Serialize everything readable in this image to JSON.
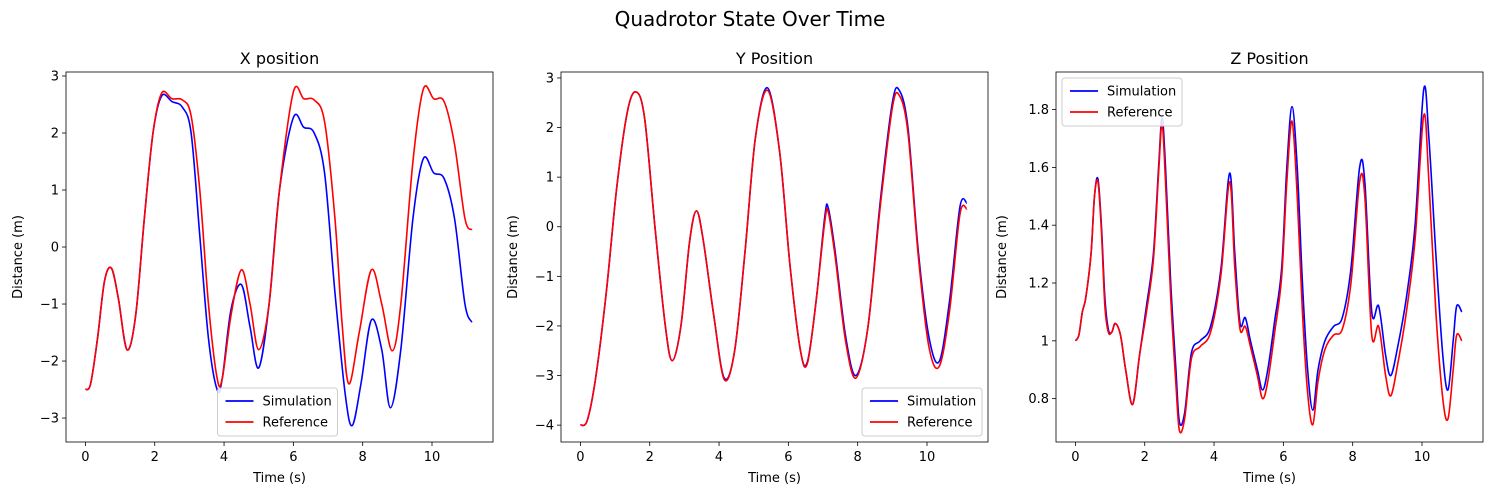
{
  "figure": {
    "suptitle": "Quadrotor State Over Time"
  },
  "chart_data": [
    {
      "type": "line",
      "title": "X position",
      "xlabel": "Time (s)",
      "ylabel": "Distance (m)",
      "xlim": [
        -0.56,
        11.76
      ],
      "ylim": [
        -3.42,
        3.07
      ],
      "xticks": [
        0,
        2,
        4,
        6,
        8,
        10
      ],
      "yticks": [
        -3,
        -2,
        -1,
        0,
        1,
        2,
        3
      ],
      "legend": "lower center",
      "series": [
        {
          "name": "Simulation",
          "color": "#0000ff",
          "x": [
            0,
            0.15,
            0.35,
            0.55,
            0.75,
            0.95,
            1.2,
            1.45,
            1.7,
            1.95,
            2.2,
            2.5,
            2.8,
            3.05,
            3.3,
            3.55,
            3.8,
            3.95,
            4.2,
            4.5,
            4.75,
            5.0,
            5.3,
            5.6,
            6.0,
            6.3,
            6.6,
            6.9,
            7.2,
            7.5,
            7.7,
            7.95,
            8.25,
            8.55,
            8.8,
            9.1,
            9.45,
            9.75,
            10.05,
            10.35,
            10.65,
            10.95,
            11.15
          ],
          "y": [
            -2.5,
            -2.4,
            -1.6,
            -0.6,
            -0.37,
            -0.9,
            -1.8,
            -1.2,
            0.5,
            2.0,
            2.65,
            2.55,
            2.45,
            2.0,
            0.2,
            -1.6,
            -2.5,
            -2.3,
            -1.1,
            -0.66,
            -1.4,
            -2.12,
            -1.0,
            1.0,
            2.27,
            2.1,
            2.0,
            1.3,
            -0.8,
            -2.6,
            -3.13,
            -2.4,
            -1.28,
            -1.8,
            -2.82,
            -1.8,
            0.5,
            1.55,
            1.3,
            1.2,
            0.5,
            -1.0,
            -1.32
          ]
        },
        {
          "name": "Reference",
          "color": "#ff0000",
          "x": [
            0,
            0.15,
            0.35,
            0.55,
            0.75,
            0.95,
            1.2,
            1.45,
            1.7,
            1.95,
            2.2,
            2.5,
            2.8,
            3.05,
            3.3,
            3.55,
            3.8,
            3.95,
            4.2,
            4.5,
            4.75,
            5.0,
            5.3,
            5.6,
            6.0,
            6.3,
            6.6,
            6.9,
            7.2,
            7.4,
            7.6,
            7.9,
            8.25,
            8.55,
            8.85,
            9.1,
            9.45,
            9.75,
            10.05,
            10.35,
            10.65,
            10.95,
            11.15
          ],
          "y": [
            -2.5,
            -2.4,
            -1.6,
            -0.6,
            -0.37,
            -0.9,
            -1.8,
            -1.2,
            0.5,
            2.0,
            2.7,
            2.6,
            2.58,
            2.3,
            1.0,
            -1.0,
            -2.3,
            -2.3,
            -1.2,
            -0.4,
            -1.0,
            -1.8,
            -1.0,
            1.0,
            2.72,
            2.6,
            2.58,
            2.2,
            0.5,
            -1.3,
            -2.4,
            -1.5,
            -0.4,
            -1.0,
            -1.82,
            -1.0,
            1.5,
            2.77,
            2.6,
            2.55,
            1.8,
            0.5,
            0.3
          ]
        }
      ]
    },
    {
      "type": "line",
      "title": "Y Position",
      "xlabel": "Time (s)",
      "ylabel": "Distance (m)",
      "xlim": [
        -0.56,
        11.76
      ],
      "ylim": [
        -4.34,
        3.12
      ],
      "xticks": [
        0,
        2,
        4,
        6,
        8,
        10
      ],
      "yticks": [
        -4,
        -3,
        -2,
        -1,
        0,
        1,
        2,
        3
      ],
      "legend": "lower right",
      "series": [
        {
          "name": "Simulation",
          "color": "#0000ff",
          "x": [
            0,
            0.2,
            0.45,
            0.75,
            1.05,
            1.35,
            1.6,
            1.85,
            2.15,
            2.45,
            2.65,
            2.9,
            3.15,
            3.35,
            3.55,
            3.85,
            4.15,
            4.45,
            4.75,
            5.05,
            5.4,
            5.75,
            6.05,
            6.35,
            6.55,
            6.8,
            7.05,
            7.15,
            7.35,
            7.65,
            7.95,
            8.3,
            8.65,
            9.0,
            9.2,
            9.45,
            9.75,
            10.05,
            10.35,
            10.65,
            10.95,
            11.15
          ],
          "y": [
            -4.0,
            -3.9,
            -3.0,
            -1.3,
            0.8,
            2.3,
            2.72,
            2.2,
            0.0,
            -2.0,
            -2.7,
            -2.0,
            -0.3,
            0.32,
            -0.3,
            -1.8,
            -3.05,
            -2.5,
            -0.5,
            1.8,
            2.8,
            1.5,
            -0.8,
            -2.5,
            -2.72,
            -1.5,
            0.2,
            0.38,
            -0.5,
            -2.2,
            -3.0,
            -2.0,
            0.5,
            2.5,
            2.75,
            2.0,
            -0.5,
            -2.2,
            -2.72,
            -1.5,
            0.4,
            0.48
          ]
        },
        {
          "name": "Reference",
          "color": "#ff0000",
          "x": [
            0,
            0.2,
            0.45,
            0.75,
            1.05,
            1.35,
            1.6,
            1.85,
            2.15,
            2.45,
            2.65,
            2.9,
            3.15,
            3.35,
            3.55,
            3.85,
            4.15,
            4.45,
            4.75,
            5.05,
            5.4,
            5.75,
            6.05,
            6.35,
            6.55,
            6.8,
            7.05,
            7.15,
            7.35,
            7.65,
            7.95,
            8.3,
            8.65,
            9.0,
            9.2,
            9.45,
            9.75,
            10.05,
            10.35,
            10.65,
            10.95,
            11.15
          ],
          "y": [
            -4.0,
            -3.9,
            -3.0,
            -1.3,
            0.8,
            2.3,
            2.72,
            2.2,
            0.0,
            -2.0,
            -2.7,
            -2.0,
            -0.3,
            0.32,
            -0.3,
            -1.8,
            -3.08,
            -2.5,
            -0.5,
            1.8,
            2.75,
            1.5,
            -0.8,
            -2.5,
            -2.75,
            -1.5,
            0.1,
            0.3,
            -0.6,
            -2.3,
            -3.05,
            -2.0,
            0.4,
            2.4,
            2.65,
            1.9,
            -0.6,
            -2.4,
            -2.82,
            -1.7,
            0.25,
            0.36
          ]
        }
      ]
    },
    {
      "type": "line",
      "title": "Z Position",
      "xlabel": "Time (s)",
      "ylabel": "Distance (m)",
      "xlim": [
        -0.56,
        11.76
      ],
      "ylim": [
        0.65,
        1.93
      ],
      "xticks": [
        0,
        2,
        4,
        6,
        8,
        10
      ],
      "yticks": [
        0.8,
        1.0,
        1.2,
        1.4,
        1.6,
        1.8
      ],
      "legend": "upper left",
      "series": [
        {
          "name": "Simulation",
          "color": "#0000ff",
          "x": [
            0,
            0.1,
            0.2,
            0.3,
            0.45,
            0.55,
            0.65,
            0.75,
            0.85,
            0.95,
            1.05,
            1.15,
            1.3,
            1.45,
            1.65,
            1.85,
            2.05,
            2.25,
            2.4,
            2.5,
            2.6,
            2.75,
            2.9,
            3.0,
            3.15,
            3.35,
            3.6,
            3.9,
            4.2,
            4.45,
            4.6,
            4.75,
            4.9,
            5.05,
            5.25,
            5.4,
            5.55,
            5.75,
            5.95,
            6.1,
            6.25,
            6.4,
            6.55,
            6.7,
            6.85,
            7.0,
            7.2,
            7.45,
            7.7,
            7.95,
            8.2,
            8.35,
            8.55,
            8.75,
            8.95,
            9.1,
            9.3,
            9.55,
            9.8,
            10.05,
            10.2,
            10.4,
            10.6,
            10.75,
            10.9,
            11.0,
            11.15
          ],
          "y": [
            1.0,
            1.02,
            1.1,
            1.15,
            1.3,
            1.5,
            1.56,
            1.4,
            1.15,
            1.04,
            1.03,
            1.06,
            1.02,
            0.9,
            0.78,
            0.95,
            1.12,
            1.3,
            1.6,
            1.77,
            1.6,
            1.2,
            0.9,
            0.72,
            0.75,
            0.96,
            1.0,
            1.05,
            1.25,
            1.58,
            1.3,
            1.06,
            1.08,
            1.0,
            0.9,
            0.83,
            0.9,
            1.07,
            1.25,
            1.6,
            1.81,
            1.6,
            1.2,
            0.9,
            0.76,
            0.9,
            1.0,
            1.05,
            1.08,
            1.25,
            1.6,
            1.55,
            1.1,
            1.12,
            0.95,
            0.88,
            0.98,
            1.15,
            1.4,
            1.87,
            1.7,
            1.3,
            0.95,
            0.83,
            1.0,
            1.12,
            1.1
          ]
        },
        {
          "name": "Reference",
          "color": "#ff0000",
          "x": [
            0,
            0.1,
            0.2,
            0.3,
            0.45,
            0.55,
            0.65,
            0.75,
            0.85,
            0.95,
            1.05,
            1.15,
            1.3,
            1.45,
            1.65,
            1.85,
            2.05,
            2.25,
            2.4,
            2.5,
            2.6,
            2.75,
            2.9,
            3.0,
            3.15,
            3.35,
            3.6,
            3.9,
            4.2,
            4.45,
            4.6,
            4.75,
            4.9,
            5.05,
            5.25,
            5.4,
            5.55,
            5.75,
            5.95,
            6.1,
            6.25,
            6.4,
            6.55,
            6.7,
            6.85,
            7.0,
            7.2,
            7.45,
            7.7,
            7.95,
            8.2,
            8.35,
            8.55,
            8.75,
            8.95,
            9.1,
            9.3,
            9.55,
            9.8,
            10.05,
            10.2,
            10.4,
            10.6,
            10.75,
            10.9,
            11.0,
            11.15
          ],
          "y": [
            1.0,
            1.02,
            1.1,
            1.15,
            1.3,
            1.5,
            1.55,
            1.38,
            1.12,
            1.03,
            1.03,
            1.06,
            1.02,
            0.9,
            0.78,
            0.95,
            1.1,
            1.28,
            1.58,
            1.75,
            1.55,
            1.15,
            0.85,
            0.69,
            0.73,
            0.94,
            0.98,
            1.03,
            1.23,
            1.55,
            1.25,
            1.04,
            1.05,
            0.98,
            0.88,
            0.8,
            0.86,
            1.03,
            1.22,
            1.55,
            1.76,
            1.5,
            1.1,
            0.82,
            0.71,
            0.86,
            0.97,
            1.02,
            1.04,
            1.2,
            1.55,
            1.5,
            1.02,
            1.05,
            0.88,
            0.81,
            0.92,
            1.1,
            1.35,
            1.78,
            1.55,
            1.1,
            0.8,
            0.73,
            0.9,
            1.02,
            1.0
          ]
        }
      ]
    }
  ]
}
